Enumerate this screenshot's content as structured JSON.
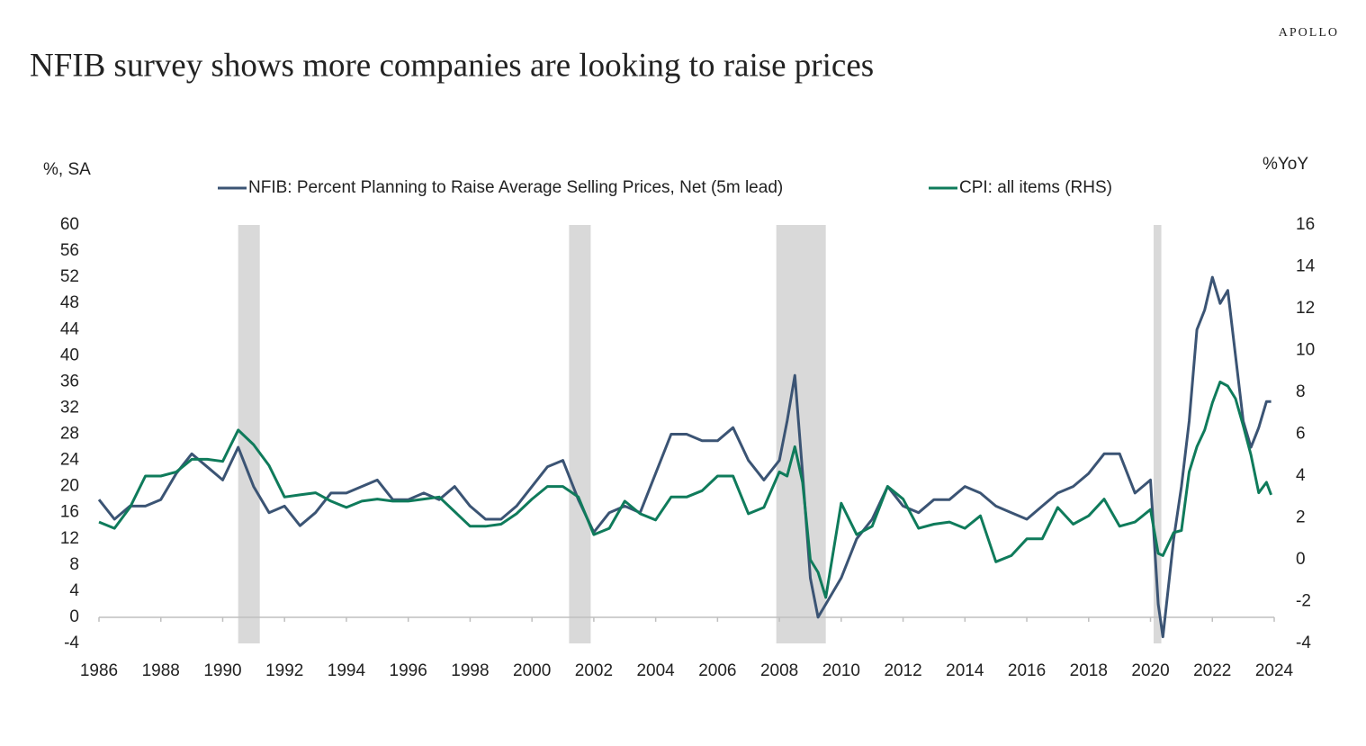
{
  "chart_data": {
    "type": "line",
    "brand": "APOLLO",
    "title": "NFIB survey shows more companies are looking to raise prices",
    "ylabel": "%, SA",
    "y2label": "%YoY",
    "x": [
      1986.0,
      1986.5,
      1987.0,
      1987.5,
      1988.0,
      1988.5,
      1989.0,
      1989.5,
      1990.0,
      1990.5,
      1991.0,
      1991.5,
      1992.0,
      1992.5,
      1993.0,
      1993.5,
      1994.0,
      1994.5,
      1995.0,
      1995.5,
      1996.0,
      1996.5,
      1997.0,
      1997.5,
      1998.0,
      1998.5,
      1999.0,
      1999.5,
      2000.0,
      2000.5,
      2001.0,
      2001.5,
      2002.0,
      2002.5,
      2003.0,
      2003.5,
      2004.0,
      2004.5,
      2005.0,
      2005.5,
      2006.0,
      2006.5,
      2007.0,
      2007.5,
      2008.0,
      2008.25,
      2008.5,
      2008.75,
      2009.0,
      2009.25,
      2009.5,
      2010.0,
      2010.5,
      2011.0,
      2011.5,
      2012.0,
      2012.5,
      2013.0,
      2013.5,
      2014.0,
      2014.5,
      2015.0,
      2015.5,
      2016.0,
      2016.5,
      2017.0,
      2017.5,
      2018.0,
      2018.5,
      2019.0,
      2019.5,
      2020.0,
      2020.25,
      2020.4,
      2020.75,
      2021.0,
      2021.25,
      2021.5,
      2021.75,
      2022.0,
      2022.25,
      2022.5,
      2022.75,
      2023.0,
      2023.25,
      2023.5,
      2023.75,
      2023.9
    ],
    "series": [
      {
        "name": "NFIB: Percent Planning to Raise Average Selling Prices, Net (5m lead)",
        "color": "#3b5474",
        "axis": "y",
        "values": [
          18,
          15,
          17,
          17,
          18,
          22,
          25,
          23,
          21,
          26,
          20,
          16,
          17,
          14,
          16,
          19,
          19,
          20,
          21,
          18,
          18,
          19,
          18,
          20,
          17,
          15,
          15,
          17,
          20,
          23,
          24,
          18,
          13,
          16,
          17,
          16,
          22,
          28,
          28,
          27,
          27,
          29,
          24,
          21,
          24,
          30,
          37,
          22,
          6,
          0,
          2,
          6,
          12,
          15,
          20,
          17,
          16,
          18,
          18,
          20,
          19,
          17,
          16,
          15,
          17,
          19,
          20,
          22,
          25,
          25,
          19,
          21,
          2,
          -3,
          12,
          20,
          30,
          44,
          47,
          52,
          48,
          50,
          40,
          30,
          26,
          29,
          33,
          33
        ]
      },
      {
        "name": "CPI: all items (RHS)",
        "color": "#0f7b5b",
        "axis": "y2",
        "values": [
          1.8,
          1.5,
          2.5,
          4.0,
          4.0,
          4.2,
          4.8,
          4.8,
          4.7,
          6.2,
          5.5,
          4.5,
          3.0,
          3.1,
          3.2,
          2.8,
          2.5,
          2.8,
          2.9,
          2.8,
          2.8,
          2.9,
          3.0,
          2.3,
          1.6,
          1.6,
          1.7,
          2.2,
          2.9,
          3.5,
          3.5,
          3.0,
          1.2,
          1.5,
          2.8,
          2.2,
          1.9,
          3.0,
          3.0,
          3.3,
          4.0,
          4.0,
          2.2,
          2.5,
          4.2,
          4.0,
          5.4,
          3.7,
          0.0,
          -0.6,
          -1.8,
          2.7,
          1.2,
          1.6,
          3.5,
          2.9,
          1.5,
          1.7,
          1.8,
          1.5,
          2.1,
          -0.1,
          0.2,
          1.0,
          1.0,
          2.5,
          1.7,
          2.1,
          2.9,
          1.6,
          1.8,
          2.4,
          0.3,
          0.2,
          1.3,
          1.4,
          4.2,
          5.4,
          6.2,
          7.5,
          8.5,
          8.3,
          7.7,
          6.4,
          5.0,
          3.2,
          3.7,
          3.1
        ]
      }
    ],
    "recessions": [
      [
        1990.5,
        1991.2
      ],
      [
        2001.2,
        2001.9
      ],
      [
        2007.9,
        2009.5
      ],
      [
        2020.1,
        2020.35
      ]
    ],
    "recession_color": "#d9d9d9",
    "xlim": [
      1986,
      2024
    ],
    "xticks": [
      1986,
      1988,
      1990,
      1992,
      1994,
      1996,
      1998,
      2000,
      2002,
      2004,
      2006,
      2008,
      2010,
      2012,
      2014,
      2016,
      2018,
      2020,
      2022,
      2024
    ],
    "ylim": [
      -4,
      60
    ],
    "yticks": [
      -4,
      0,
      4,
      8,
      12,
      16,
      20,
      24,
      28,
      32,
      36,
      40,
      44,
      48,
      52,
      56,
      60
    ],
    "y2lim": [
      -4,
      16
    ],
    "y2ticks": [
      -4,
      -2,
      0,
      2,
      4,
      6,
      8,
      10,
      12,
      14,
      16
    ],
    "legend": "top"
  }
}
